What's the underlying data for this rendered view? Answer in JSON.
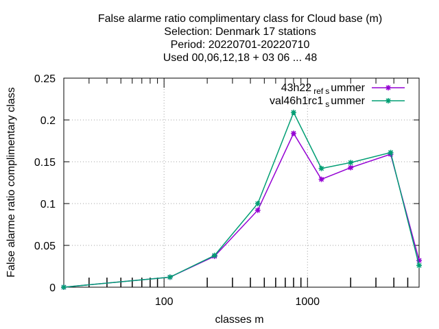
{
  "chart_data": {
    "type": "line",
    "title_lines": [
      "False alarme ratio complimentary class  for Cloud base (m)",
      "Selection: Denmark     17 stations",
      "Period: 20220701-20220710",
      "Used  00,06,12,18  + 03 06 ... 48"
    ],
    "xlabel": "classes m",
    "ylabel": "False alarme ratio complimentary class",
    "x_scale": "log",
    "xlim": [
      20,
      6000
    ],
    "ylim": [
      0,
      0.25
    ],
    "x_tick_labels": [
      "100",
      "1000"
    ],
    "y_tick_labels": [
      "0",
      "0.05",
      "0.1",
      "0.15",
      "0.2",
      "0.25"
    ],
    "grid": true,
    "legend_position": "top-right",
    "x": [
      20,
      110,
      225,
      450,
      800,
      1250,
      2000,
      3800,
      6000
    ],
    "series": [
      {
        "legend_main": "43h22",
        "legend_sub1": "ref",
        "legend_mid": "",
        "legend_sub2": "s",
        "legend_tail": "ummer",
        "color": "#9400d3",
        "values": [
          0.0,
          0.012,
          0.037,
          0.092,
          0.184,
          0.129,
          0.143,
          0.159,
          0.032
        ]
      },
      {
        "legend_main": "val46h1rc1",
        "legend_sub1": "",
        "legend_mid": "",
        "legend_sub2": "s",
        "legend_tail": "ummer",
        "color": "#009e73",
        "values": [
          0.0,
          0.012,
          0.038,
          0.1,
          0.209,
          0.142,
          0.149,
          0.161,
          0.026
        ]
      }
    ]
  }
}
